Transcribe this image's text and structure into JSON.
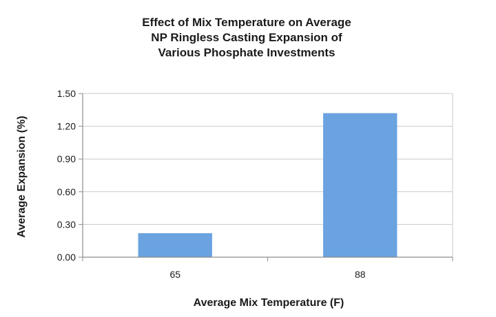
{
  "chart_data": {
    "type": "bar",
    "title": [
      "Effect of Mix Temperature on Average",
      "NP Ringless Casting Expansion of",
      "Various Phosphate Investments"
    ],
    "xlabel": "Average Mix Temperature (F)",
    "ylabel": "Average Expansion (%)",
    "categories": [
      "65",
      "88"
    ],
    "values": [
      0.22,
      1.32
    ],
    "ylim": [
      0,
      1.5
    ],
    "yticks": [
      "0.00",
      "0.30",
      "0.60",
      "0.90",
      "1.20",
      "1.50"
    ],
    "ytick_values": [
      0,
      0.3,
      0.6,
      0.9,
      1.2,
      1.5
    ],
    "grid": true,
    "legend": "none",
    "bar_color": "#6aa3e0",
    "grid_color": "#c9c9c9",
    "axis_color": "#8c8c8c"
  }
}
